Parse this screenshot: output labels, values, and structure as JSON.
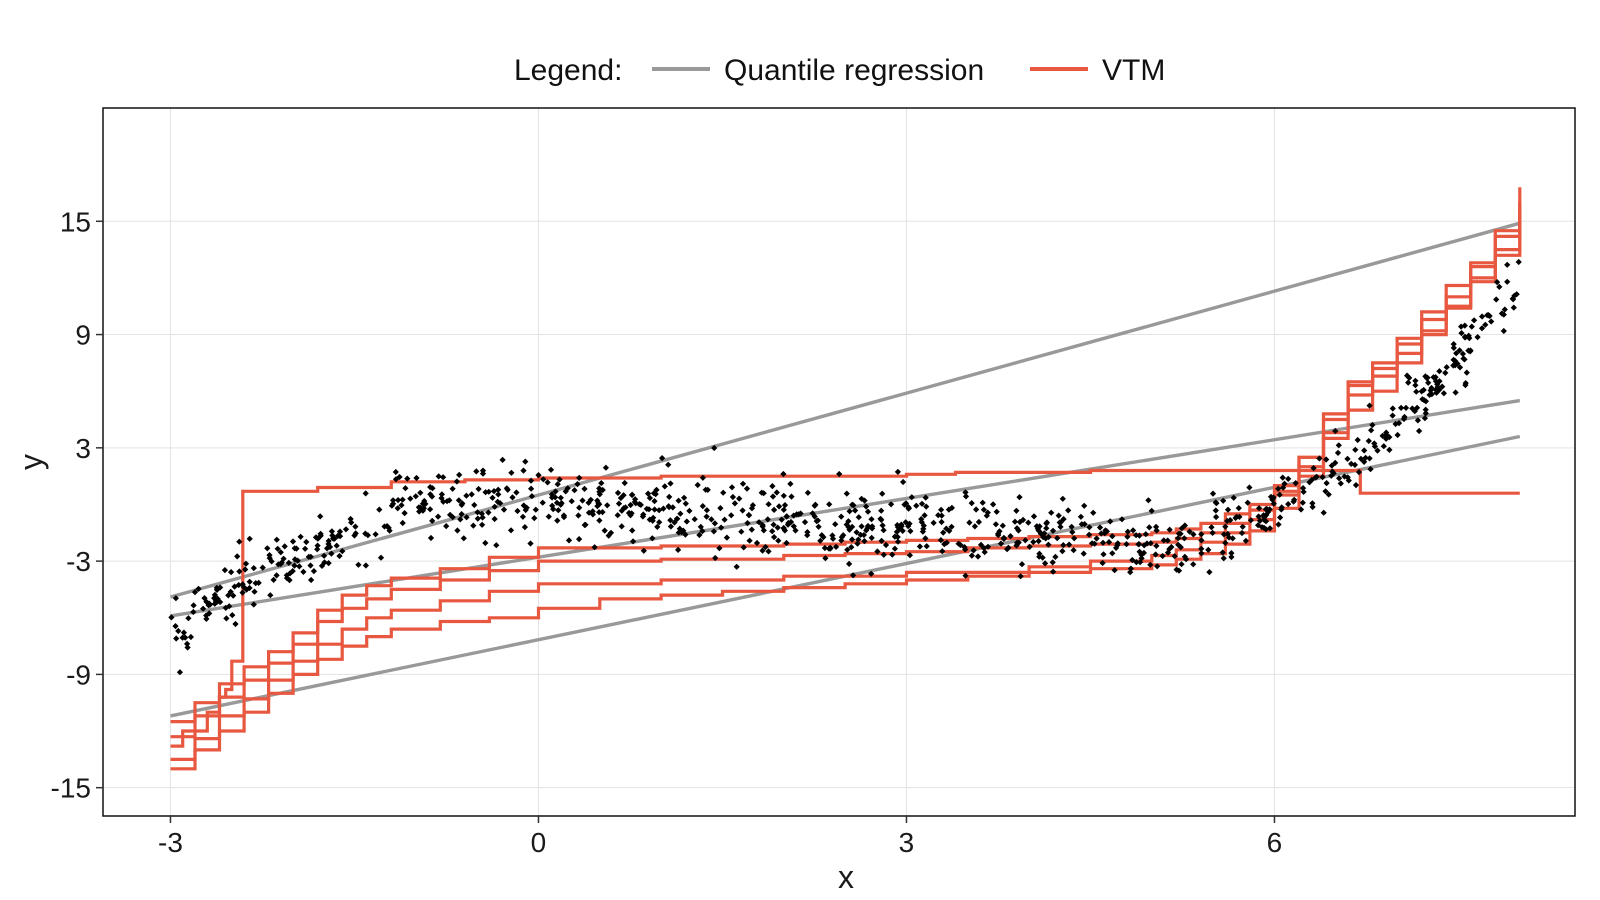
{
  "chart_data": {
    "type": "scatter",
    "xlabel": "x",
    "ylabel": "y",
    "xlim": [
      -3.55,
      8.45
    ],
    "ylim": [
      -16.5,
      21
    ],
    "xticks": [
      -3,
      0,
      3,
      6
    ],
    "yticks": [
      -15,
      -9,
      -3,
      3,
      9,
      15
    ],
    "grid": true,
    "legend": {
      "position": "top",
      "title": "Legend:",
      "entries": [
        {
          "label": "Quantile regression",
          "color": "#999999"
        },
        {
          "label": "VTM",
          "color": "#E8573F"
        }
      ]
    },
    "colors": {
      "points": "#000000",
      "quantile": "#999999",
      "vtm": "#E8573F"
    },
    "series": [
      {
        "name": "Quantile regression",
        "kind": "line",
        "x": [
          -3,
          8
        ],
        "y": [
          -4.9,
          14.9
        ]
      },
      {
        "name": "Quantile regression",
        "kind": "line",
        "x": [
          -3,
          8
        ],
        "y": [
          -5.9,
          5.5
        ]
      },
      {
        "name": "Quantile regression",
        "kind": "line",
        "x": [
          -3,
          8
        ],
        "y": [
          -11.2,
          3.6
        ]
      },
      {
        "name": "VTM",
        "kind": "step",
        "x": [
          -3,
          -2.9,
          -2.7,
          -2.6,
          -2.55,
          -2.5,
          -2.45,
          -2.42,
          -2.41,
          -1.8,
          -1.2,
          -0.6,
          0,
          1,
          2,
          3,
          3.4,
          4.5,
          5.5,
          6.3,
          6.7,
          6.75,
          8
        ],
        "y": [
          -12.8,
          -12,
          -11,
          -10.2,
          -9.8,
          -8.3,
          -8.3,
          -8.3,
          0.7,
          0.9,
          1.2,
          1.3,
          1.4,
          1.5,
          1.5,
          1.6,
          1.7,
          1.8,
          1.8,
          1.8,
          0.6,
          0.6,
          0.6
        ]
      },
      {
        "name": "VTM",
        "kind": "step",
        "x": [
          -3,
          -2.8,
          -2.6,
          -2.4,
          -2.2,
          -2,
          -1.8,
          -1.6,
          -1.4,
          -1.2,
          -0.8,
          -0.4,
          0,
          1,
          2,
          2.5,
          3,
          3.5,
          4,
          4.5,
          5,
          5.2,
          5.4,
          5.6,
          5.8,
          6,
          6.2,
          6.4,
          6.6,
          6.8,
          7,
          7.2,
          7.4,
          7.6,
          7.8,
          8
        ],
        "y": [
          -11.5,
          -10.5,
          -9.5,
          -8.6,
          -7.8,
          -6.8,
          -5.6,
          -4.8,
          -4.3,
          -3.9,
          -3.4,
          -2.8,
          -2.3,
          -2.2,
          -2.1,
          -2.0,
          -1.9,
          -1.8,
          -1.7,
          -1.6,
          -1.5,
          -1.3,
          -1.0,
          -0.5,
          0.0,
          1.0,
          2.5,
          4.5,
          6.5,
          7.5,
          8.5,
          9.8,
          11.0,
          12.6,
          14.2,
          16.8
        ]
      },
      {
        "name": "VTM",
        "kind": "step",
        "x": [
          -3,
          -2.8,
          -2.6,
          -2.4,
          -2.2,
          -2,
          -1.8,
          -1.6,
          -1.4,
          -1.2,
          -0.8,
          -0.4,
          0,
          1,
          2,
          3,
          4,
          4.5,
          5,
          5.2,
          5.4,
          5.6,
          5.8,
          6,
          6.2,
          6.4,
          6.6,
          6.8,
          7,
          7.2,
          7.4,
          7.6,
          7.8,
          8
        ],
        "y": [
          -13.5,
          -12.4,
          -11.2,
          -10.3,
          -9.3,
          -8.3,
          -7.4,
          -6.6,
          -6.0,
          -5.6,
          -5.1,
          -4.6,
          -4.2,
          -4.0,
          -3.8,
          -3.6,
          -3.3,
          -3.0,
          -2.7,
          -2.4,
          -2.0,
          -1.5,
          -0.8,
          0.5,
          2.5,
          4.8,
          6.3,
          7.2,
          8.8,
          10.2,
          11.6,
          12.8,
          14.5,
          16.0
        ]
      },
      {
        "name": "VTM",
        "kind": "step",
        "x": [
          -3,
          -2.8,
          -2.6,
          -2.4,
          -2.2,
          -2,
          -1.8,
          -1.6,
          -1.4,
          -1.2,
          -0.8,
          -0.4,
          0,
          1,
          2,
          2.5,
          3,
          3.5,
          4,
          4.5,
          5,
          5.2,
          5.4,
          5.6,
          5.8,
          6,
          6.2,
          6.4,
          6.6,
          6.8,
          7,
          7.2,
          7.4,
          7.6,
          7.8,
          8
        ],
        "y": [
          -12.3,
          -11.2,
          -10.2,
          -9.3,
          -8.4,
          -7.4,
          -6.2,
          -5.5,
          -5.0,
          -4.5,
          -4.0,
          -3.5,
          -3.0,
          -2.9,
          -2.7,
          -2.6,
          -2.5,
          -2.3,
          -2.2,
          -2.1,
          -2.0,
          -1.8,
          -1.5,
          -1.0,
          -0.3,
          0.7,
          2.0,
          3.8,
          5.8,
          6.8,
          8.0,
          9.2,
          10.4,
          11.8,
          13.2,
          16.0
        ]
      },
      {
        "name": "VTM",
        "kind": "step",
        "x": [
          -3,
          -2.8,
          -2.6,
          -2.4,
          -2.2,
          -2,
          -1.8,
          -1.6,
          -1.4,
          -1.2,
          -0.8,
          -0.4,
          0,
          0.5,
          1,
          1.5,
          2,
          2.5,
          3,
          3.5,
          4,
          4.5,
          5,
          5.2,
          5.4,
          5.6,
          5.8,
          6,
          6.2,
          6.4,
          6.6,
          6.8,
          7,
          7.2,
          7.4,
          7.6,
          7.8,
          8
        ],
        "y": [
          -14.0,
          -13.0,
          -12.0,
          -11.0,
          -10.0,
          -9.0,
          -8.2,
          -7.5,
          -7.0,
          -6.6,
          -6.2,
          -6.0,
          -5.5,
          -5.0,
          -4.8,
          -4.6,
          -4.4,
          -4.2,
          -4.0,
          -3.8,
          -3.6,
          -3.4,
          -3.2,
          -2.9,
          -2.6,
          -2.1,
          -1.4,
          -0.2,
          1.5,
          3.5,
          5.0,
          6.0,
          7.5,
          9.0,
          10.5,
          12.0,
          13.5,
          15.2
        ]
      }
    ]
  }
}
